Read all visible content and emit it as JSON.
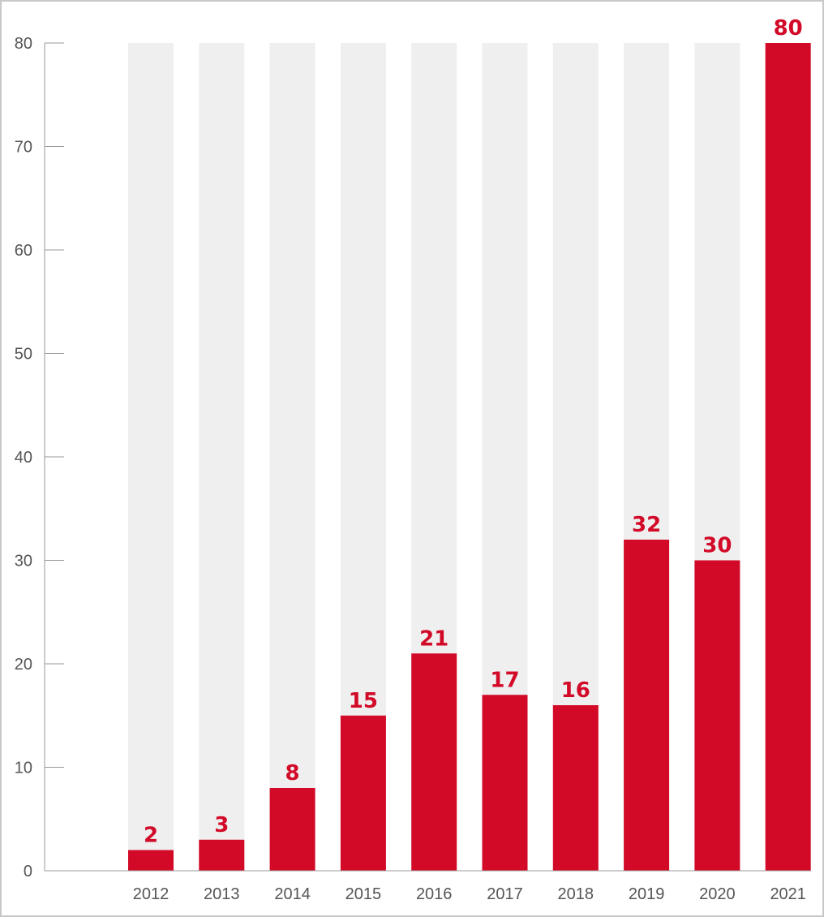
{
  "chart_data": {
    "type": "bar",
    "categories": [
      "2012",
      "2013",
      "2014",
      "2015",
      "2016",
      "2017",
      "2018",
      "2019",
      "2020",
      "2021"
    ],
    "values": [
      2,
      3,
      8,
      15,
      21,
      17,
      16,
      32,
      30,
      80
    ],
    "data_labels": [
      "2",
      "3",
      "8",
      "15",
      "21",
      "17",
      "16",
      "32",
      "30",
      "80"
    ],
    "title": "",
    "xlabel": "",
    "ylabel": "",
    "ylim": [
      0,
      80
    ],
    "yticks": [
      0,
      10,
      20,
      30,
      40,
      50,
      60,
      70,
      80
    ],
    "ytick_labels": [
      "0",
      "10",
      "20",
      "30",
      "40",
      "50",
      "60",
      "70",
      "80"
    ],
    "grid": false,
    "legend": "none",
    "colors": {
      "bar": "#d20a28",
      "background_bar": "#efefef",
      "data_label": "#d20a28",
      "axis": "#999999",
      "tick_label": "#555555"
    }
  }
}
